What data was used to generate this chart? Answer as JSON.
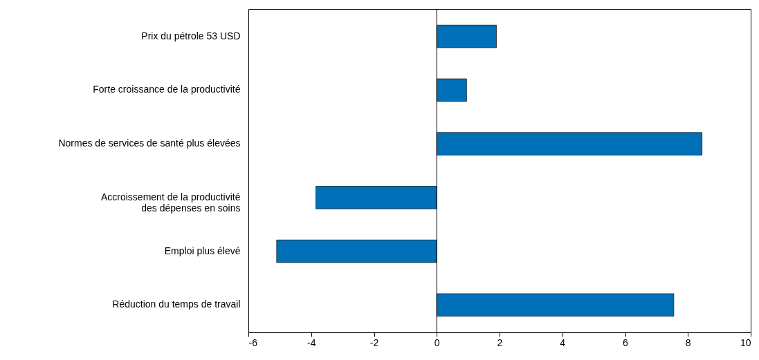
{
  "chart_data": {
    "type": "bar",
    "orientation": "horizontal",
    "categories": [
      "Prix du pétrole 53 USD",
      "Forte croissance de la productivité",
      "Normes de services de santé plus élevées",
      "Accroissement de la productivité\ndes dépenses en soins",
      "Emploi plus élevé",
      "Réduction du temps de travail"
    ],
    "values": [
      1.9,
      0.95,
      8.45,
      -3.85,
      -5.1,
      7.55
    ],
    "color": "#0070b8",
    "xlim": [
      -6,
      10
    ],
    "xticks": [
      -6,
      -4,
      -2,
      0,
      2,
      4,
      6,
      8,
      10
    ]
  }
}
